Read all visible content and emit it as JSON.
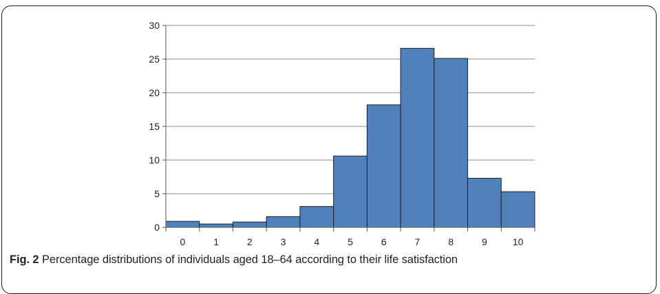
{
  "caption": {
    "label": "Fig. 2",
    "text": "Percentage distributions of individuals aged 18–64 according to their life satisfaction"
  },
  "colors": {
    "bar_fill": "#4f81bd",
    "bar_stroke": "#1f1f1f",
    "grid": "#8c8c8c",
    "axis": "#555555"
  },
  "chart_data": {
    "type": "bar",
    "categories": [
      "0",
      "1",
      "2",
      "3",
      "4",
      "5",
      "6",
      "7",
      "8",
      "9",
      "10"
    ],
    "values": [
      0.9,
      0.5,
      0.8,
      1.6,
      3.1,
      10.6,
      18.2,
      26.6,
      25.1,
      7.3,
      5.3
    ],
    "title": "",
    "xlabel": "",
    "ylabel": "",
    "ylim": [
      0,
      30
    ],
    "yticks": [
      "0",
      "5",
      "10",
      "15",
      "20",
      "25",
      "30"
    ],
    "grid": true,
    "legend": "none"
  }
}
